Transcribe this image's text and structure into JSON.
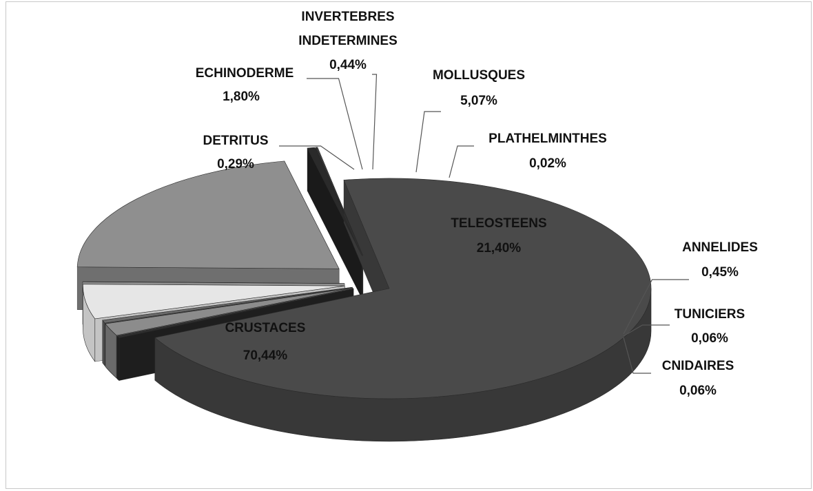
{
  "chart_data": {
    "type": "pie",
    "variant": "3d-exploded",
    "slices": [
      {
        "label": "CRUSTACES",
        "value": 70.44,
        "value_label": "70,44%",
        "color": "#4a4a4a",
        "side": "#383838"
      },
      {
        "label": "DETRITUS",
        "value": 0.29,
        "value_label": "0,29%",
        "color": "#2e2e2e",
        "side": "#1e1e1e"
      },
      {
        "label": "ECHINODERME",
        "value": 1.8,
        "value_label": "1,80%",
        "color": "#8c8c8c",
        "side": "#6a6a6a"
      },
      {
        "label": "INVERTEBRES INDETERMINES",
        "value": 0.44,
        "value_label": "0,44%",
        "color": "#6a6a6a",
        "side": "#505050"
      },
      {
        "label": "MOLLUSQUES",
        "value": 5.07,
        "value_label": "5,07%",
        "color": "#e6e6e6",
        "side": "#c4c4c4"
      },
      {
        "label": "PLATHELMINTHES",
        "value": 0.02,
        "value_label": "0,02%",
        "color": "#b0b0b0",
        "side": "#909090"
      },
      {
        "label": "TELEOSTEENS",
        "value": 21.4,
        "value_label": "21,40%",
        "color": "#8f8f8f",
        "side": "#6f6f6f"
      },
      {
        "label": "ANNELIDES",
        "value": 0.45,
        "value_label": "0,45%",
        "color": "#2a2a2a",
        "side": "#1a1a1a"
      },
      {
        "label": "TUNICIERS",
        "value": 0.06,
        "value_label": "0,06%",
        "color": "#3a3a3a",
        "side": "#262626"
      },
      {
        "label": "CNIDAIRES",
        "value": 0.06,
        "value_label": "0,06%",
        "color": "#555555",
        "side": "#3a3a3a"
      }
    ],
    "title": "",
    "legend": "none",
    "labels": "outside with leader lines (inside for CRUSTACES and TELEOSTEENS)"
  }
}
